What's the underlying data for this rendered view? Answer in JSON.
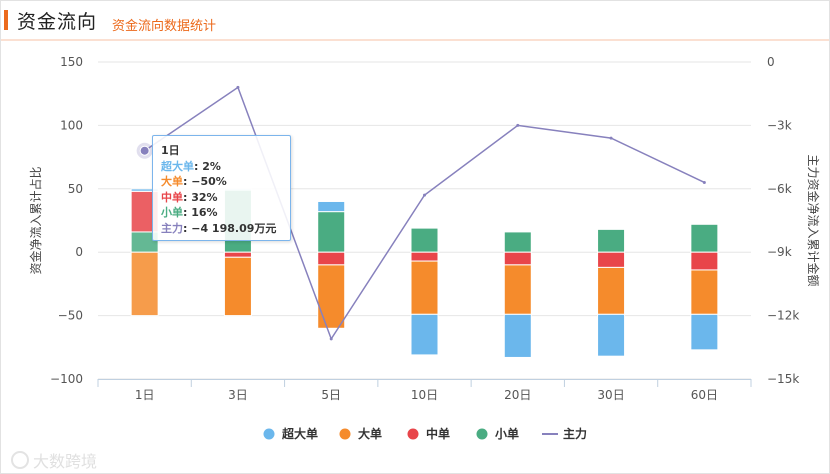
{
  "header": {
    "title": "资金流向",
    "subtitle": "资金流向数据统计"
  },
  "chart_data": {
    "type": "bar",
    "stacked": true,
    "categories": [
      "1日",
      "3日",
      "5日",
      "10日",
      "20日",
      "30日",
      "60日"
    ],
    "series": [
      {
        "name": "超大单",
        "color": "#6bb7ec",
        "values": [
          2,
          1,
          8,
          -32,
          -34,
          -33,
          -28
        ]
      },
      {
        "name": "大单",
        "color": "#f58b2c",
        "values": [
          -50,
          -46,
          -50,
          -42,
          -39,
          -37,
          -35
        ]
      },
      {
        "name": "中单",
        "color": "#e8454a",
        "values": [
          32,
          -4,
          -10,
          -7,
          -10,
          -12,
          -14
        ]
      },
      {
        "name": "小单",
        "color": "#4aac82",
        "values": [
          16,
          49,
          32,
          19,
          16,
          18,
          22
        ]
      },
      {
        "name": "主力",
        "color": "#8781bd",
        "type": "line",
        "axis": "right",
        "values": [
          -4198.09,
          -1200,
          -13100,
          -6300,
          -3000,
          -3600,
          -5700
        ]
      }
    ],
    "yleft": {
      "label": "资金净流入累计占比",
      "ticks": [
        150,
        100,
        50,
        0,
        -50,
        -100
      ],
      "ylim": [
        -100,
        150
      ]
    },
    "yright": {
      "label": "主力资金净流入累计金额",
      "ticks": [
        "0",
        "−3k",
        "−6k",
        "−9k",
        "−12k",
        "−15k"
      ],
      "ylim": [
        -15000,
        0
      ]
    },
    "legend": {
      "placement": "bottom-center"
    },
    "tooltip": {
      "title": "1日",
      "rows": [
        {
          "label": "超大单",
          "value": "2%",
          "color": "#6bb7ec"
        },
        {
          "label": "大单",
          "value": "−50%",
          "color": "#f58b2c"
        },
        {
          "label": "中单",
          "value": "32%",
          "color": "#e8454a"
        },
        {
          "label": "小单",
          "value": "16%",
          "color": "#4aac82"
        },
        {
          "label": "主力",
          "value": "−4 198.09万元",
          "color": "#8781bd"
        }
      ]
    }
  },
  "watermark": "大数跨境"
}
